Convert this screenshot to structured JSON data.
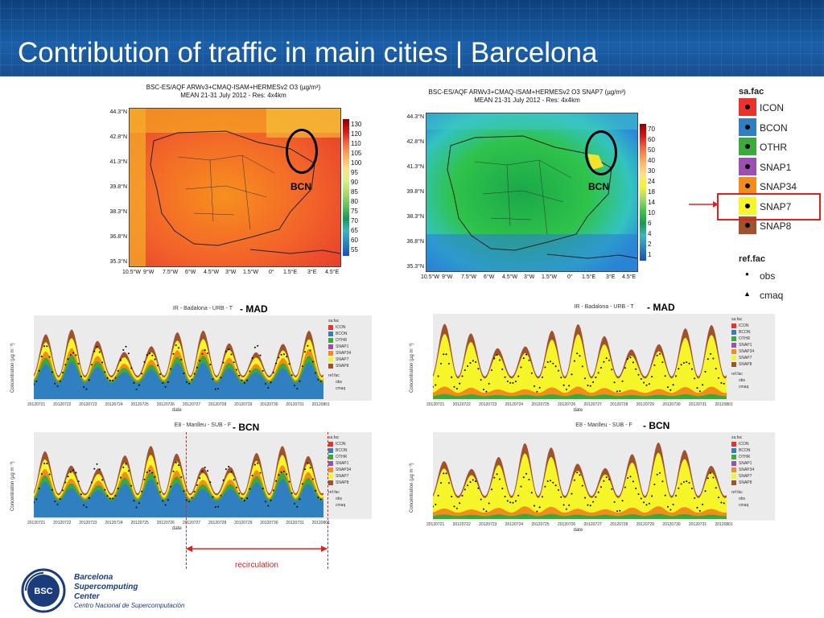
{
  "title": "Contribution of traffic in main cities | Barcelona",
  "map_left": {
    "title_line1": "BSC-ES/AQF ARWv3+CMAQ-ISAM+HERMESv2 O3 (µg/m³)",
    "title_line2": "MEAN 21-31 July 2012 - Res: 4x4km",
    "lat_labels": [
      "44.3°N",
      "42.8°N",
      "41.3°N",
      "39.8°N",
      "38.3°N",
      "36.8°N",
      "35.3°N"
    ],
    "lon_labels": [
      "10.5°W",
      "9°W",
      "7.5°W",
      "6°W",
      "4.5°W",
      "3°W",
      "1.5°W",
      "0°",
      "1.5°E",
      "3°E",
      "4.5°E"
    ],
    "colorbar_labels": [
      "130",
      "120",
      "110",
      "105",
      "100",
      "95",
      "90",
      "85",
      "80",
      "75",
      "70",
      "65",
      "60",
      "55"
    ],
    "city_label": "BCN"
  },
  "map_right": {
    "title_line1": "BSC-ES/AQF ARWv3+CMAQ-ISAM+HERMESv2 O3 SNAP7 (µg/m³)",
    "title_line2": "MEAN 21-31 July 2012 - Res: 4x4km",
    "lat_labels": [
      "44.3°N",
      "42.8°N",
      "41.3°N",
      "39.8°N",
      "38.3°N",
      "36.8°N",
      "35.3°N"
    ],
    "lon_labels": [
      "10.5°W",
      "9°W",
      "7.5°W",
      "6°W",
      "4.5°W",
      "3°W",
      "1.5°W",
      "0°",
      "1.5°E",
      "3°E",
      "4.5°E"
    ],
    "colorbar_labels": [
      "70",
      "60",
      "50",
      "40",
      "30",
      "24",
      "18",
      "14",
      "10",
      "6",
      "4",
      "2",
      "1"
    ],
    "city_label": "BCN"
  },
  "legend": {
    "title": "sa.fac",
    "items": [
      {
        "label": "ICON",
        "color": "#e8322a"
      },
      {
        "label": "BCON",
        "color": "#2f7fc1"
      },
      {
        "label": "OTHR",
        "color": "#3aaa3a"
      },
      {
        "label": "SNAP1",
        "color": "#9b4fb0"
      },
      {
        "label": "SNAP34",
        "color": "#f28c1a"
      },
      {
        "label": "SNAP7",
        "color": "#f5f52a"
      },
      {
        "label": "SNAP8",
        "color": "#a0522d"
      }
    ],
    "ref_title": "ref.fac",
    "ref_items": [
      {
        "label": "obs",
        "symbol": "●"
      },
      {
        "label": "cmaq",
        "symbol": "▲"
      }
    ]
  },
  "timeseries": [
    {
      "title": "IR - Badalona - URB - T",
      "tag": "- MAD",
      "ylabel": "Concentration (µg m⁻³)",
      "xlabel": "date",
      "mode": "total"
    },
    {
      "title": "IR - Badalona - URB - T",
      "tag": "- MAD",
      "ylabel": "Concentration (µg m⁻³)",
      "xlabel": "date",
      "mode": "snap7"
    },
    {
      "title": "E8 - Manlleu - SUB - F",
      "tag": "- BCN",
      "ylabel": "Concentration (µg m⁻³)",
      "xlabel": "date",
      "mode": "total"
    },
    {
      "title": "E8 - Manlleu - SUB - F",
      "tag": "- BCN",
      "ylabel": "Concentration (µg m⁻³)",
      "xlabel": "date",
      "mode": "snap7"
    }
  ],
  "ts_dates": [
    "20120721",
    "20120722",
    "20120723",
    "20120724",
    "20120725",
    "20120726",
    "20120727",
    "20120728",
    "20120729",
    "20120730",
    "20120731",
    "20120801"
  ],
  "ts_legend_title": "sa.fac",
  "ts_legend_items": [
    "ICON",
    "BCON",
    "OTHR",
    "SNAP1",
    "SNAP34",
    "SNAP7",
    "SNAP8"
  ],
  "ts_ref_title": "ref.fac",
  "ts_ref_items": [
    "obs",
    "cmaq"
  ],
  "recirculation_label": "recirculation",
  "logo": {
    "abbr": "BSC",
    "line1": "Barcelona",
    "line2": "Supercomputing",
    "line3": "Center",
    "line4": "Centro Nacional de Supercomputación"
  }
}
